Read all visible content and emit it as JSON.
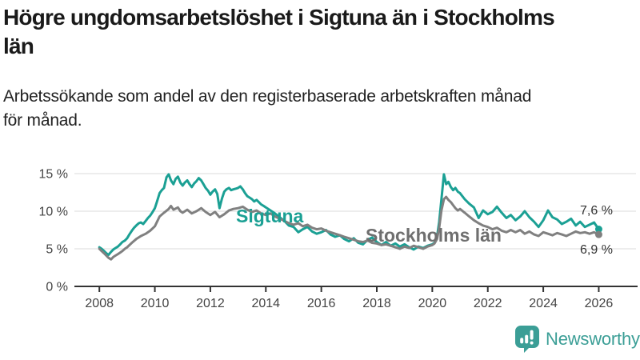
{
  "title": {
    "lines": [
      "Högre ungdomsarbetslöshet i Sigtuna än i Stockholms",
      "län"
    ]
  },
  "subtitle": {
    "lines": [
      "Arbetssökande som andel av den registerbaserade arbetskraften månad",
      "för månad."
    ]
  },
  "colors": {
    "accent_teal": "#1ba094",
    "line_gray": "#808080",
    "gray_label": "#6f6f6f",
    "axis": "#333333",
    "gridline": "#dbdbdb",
    "tick_text": "#444444",
    "end_label_text": "#333333",
    "logo_teal": "#3b9e96",
    "title_text": "#1a1a1a"
  },
  "chart_data": {
    "type": "line",
    "title": "Högre ungdomsarbetslöshet i Sigtuna än i Stockholms län",
    "subtitle": "Arbetssökande som andel av den registerbaserade arbetskraften månad för månad.",
    "xlabel": "",
    "ylabel": "",
    "grid": "horizontal-only",
    "legend_position": "inline-labels",
    "xlim": [
      2007.1,
      2027.4
    ],
    "ylim": [
      0,
      15
    ],
    "x_ticks": [
      2008,
      2010,
      2012,
      2014,
      2016,
      2018,
      2020,
      2022,
      2024,
      2026
    ],
    "x_tick_labels": [
      "2008",
      "2010",
      "2012",
      "2014",
      "2016",
      "2018",
      "2020",
      "2022",
      "2024",
      "2026"
    ],
    "y_ticks": [
      0,
      5,
      10,
      15
    ],
    "y_tick_labels": [
      "0 %",
      "5 %",
      "10 %",
      "15 %"
    ],
    "series": [
      {
        "name": "Sigtuna",
        "color": "#1ba094",
        "label_color": "#1ba094",
        "end_label": "7,6 %",
        "end_value": 7.6,
        "points": [
          [
            2008.0,
            5.2
          ],
          [
            2008.08,
            5.0
          ],
          [
            2008.17,
            4.7
          ],
          [
            2008.25,
            4.4
          ],
          [
            2008.33,
            4.2
          ],
          [
            2008.42,
            4.6
          ],
          [
            2008.5,
            4.9
          ],
          [
            2008.58,
            5.1
          ],
          [
            2008.67,
            5.3
          ],
          [
            2008.75,
            5.6
          ],
          [
            2008.83,
            5.9
          ],
          [
            2008.92,
            6.1
          ],
          [
            2009.0,
            6.4
          ],
          [
            2009.08,
            6.9
          ],
          [
            2009.17,
            7.4
          ],
          [
            2009.25,
            7.8
          ],
          [
            2009.33,
            8.1
          ],
          [
            2009.42,
            8.4
          ],
          [
            2009.5,
            8.5
          ],
          [
            2009.58,
            8.3
          ],
          [
            2009.67,
            8.7
          ],
          [
            2009.75,
            9.1
          ],
          [
            2009.83,
            9.4
          ],
          [
            2009.92,
            9.9
          ],
          [
            2010.0,
            10.4
          ],
          [
            2010.08,
            11.3
          ],
          [
            2010.17,
            12.4
          ],
          [
            2010.25,
            12.8
          ],
          [
            2010.33,
            13.1
          ],
          [
            2010.42,
            14.5
          ],
          [
            2010.5,
            14.9
          ],
          [
            2010.58,
            14.1
          ],
          [
            2010.67,
            13.6
          ],
          [
            2010.75,
            14.3
          ],
          [
            2010.83,
            14.6
          ],
          [
            2010.92,
            13.8
          ],
          [
            2011.0,
            13.4
          ],
          [
            2011.08,
            13.8
          ],
          [
            2011.17,
            14.1
          ],
          [
            2011.25,
            13.6
          ],
          [
            2011.33,
            13.2
          ],
          [
            2011.42,
            13.7
          ],
          [
            2011.5,
            14.0
          ],
          [
            2011.58,
            14.4
          ],
          [
            2011.67,
            14.1
          ],
          [
            2011.75,
            13.6
          ],
          [
            2011.83,
            13.1
          ],
          [
            2011.92,
            12.7
          ],
          [
            2012.0,
            12.2
          ],
          [
            2012.08,
            12.6
          ],
          [
            2012.17,
            12.9
          ],
          [
            2012.25,
            12.3
          ],
          [
            2012.33,
            10.4
          ],
          [
            2012.42,
            11.7
          ],
          [
            2012.5,
            12.6
          ],
          [
            2012.58,
            12.9
          ],
          [
            2012.67,
            13.1
          ],
          [
            2012.75,
            12.8
          ],
          [
            2012.83,
            12.9
          ],
          [
            2012.92,
            13.0
          ],
          [
            2013.0,
            13.1
          ],
          [
            2013.08,
            13.3
          ],
          [
            2013.17,
            12.9
          ],
          [
            2013.25,
            12.4
          ],
          [
            2013.33,
            12.0
          ],
          [
            2013.42,
            11.8
          ],
          [
            2013.5,
            11.6
          ],
          [
            2013.58,
            11.3
          ],
          [
            2013.67,
            11.5
          ],
          [
            2013.75,
            11.2
          ],
          [
            2013.83,
            10.9
          ],
          [
            2013.92,
            10.7
          ],
          [
            2014.0,
            10.5
          ],
          [
            2014.17,
            10.1
          ],
          [
            2014.33,
            9.7
          ],
          [
            2014.5,
            9.2
          ],
          [
            2014.67,
            8.7
          ],
          [
            2014.83,
            8.1
          ],
          [
            2015.0,
            7.9
          ],
          [
            2015.17,
            7.2
          ],
          [
            2015.33,
            7.6
          ],
          [
            2015.5,
            7.9
          ],
          [
            2015.67,
            7.3
          ],
          [
            2015.83,
            7.0
          ],
          [
            2016.0,
            7.2
          ],
          [
            2016.17,
            7.5
          ],
          [
            2016.33,
            6.9
          ],
          [
            2016.5,
            6.6
          ],
          [
            2016.67,
            6.8
          ],
          [
            2016.83,
            6.3
          ],
          [
            2017.0,
            6.0
          ],
          [
            2017.17,
            6.4
          ],
          [
            2017.33,
            5.8
          ],
          [
            2017.5,
            5.6
          ],
          [
            2017.67,
            6.2
          ],
          [
            2017.83,
            6.5
          ],
          [
            2018.0,
            5.9
          ],
          [
            2018.17,
            5.5
          ],
          [
            2018.33,
            5.9
          ],
          [
            2018.5,
            5.4
          ],
          [
            2018.67,
            5.7
          ],
          [
            2018.83,
            5.3
          ],
          [
            2019.0,
            5.6
          ],
          [
            2019.17,
            5.2
          ],
          [
            2019.33,
            4.9
          ],
          [
            2019.5,
            5.3
          ],
          [
            2019.67,
            5.1
          ],
          [
            2019.83,
            5.4
          ],
          [
            2020.0,
            5.6
          ],
          [
            2020.08,
            5.8
          ],
          [
            2020.17,
            6.6
          ],
          [
            2020.25,
            8.6
          ],
          [
            2020.33,
            11.6
          ],
          [
            2020.42,
            14.9
          ],
          [
            2020.5,
            13.6
          ],
          [
            2020.58,
            13.9
          ],
          [
            2020.67,
            13.2
          ],
          [
            2020.75,
            12.8
          ],
          [
            2020.83,
            13.1
          ],
          [
            2020.92,
            12.6
          ],
          [
            2021.0,
            12.4
          ],
          [
            2021.17,
            11.6
          ],
          [
            2021.33,
            11.0
          ],
          [
            2021.5,
            10.5
          ],
          [
            2021.67,
            9.1
          ],
          [
            2021.83,
            10.1
          ],
          [
            2022.0,
            9.6
          ],
          [
            2022.17,
            9.9
          ],
          [
            2022.33,
            10.6
          ],
          [
            2022.5,
            9.8
          ],
          [
            2022.67,
            9.1
          ],
          [
            2022.83,
            9.5
          ],
          [
            2023.0,
            8.8
          ],
          [
            2023.17,
            9.3
          ],
          [
            2023.33,
            10.0
          ],
          [
            2023.5,
            9.2
          ],
          [
            2023.67,
            8.6
          ],
          [
            2023.83,
            7.9
          ],
          [
            2024.0,
            8.8
          ],
          [
            2024.17,
            10.1
          ],
          [
            2024.33,
            9.2
          ],
          [
            2024.5,
            8.9
          ],
          [
            2024.67,
            8.3
          ],
          [
            2024.83,
            8.6
          ],
          [
            2025.0,
            9.0
          ],
          [
            2025.17,
            8.1
          ],
          [
            2025.33,
            8.6
          ],
          [
            2025.5,
            7.9
          ],
          [
            2025.67,
            8.2
          ],
          [
            2025.83,
            8.5
          ],
          [
            2026.0,
            7.6
          ]
        ]
      },
      {
        "name": "Stockholms län",
        "color": "#808080",
        "label_color": "#6f6f6f",
        "end_label": "6,9 %",
        "end_value": 6.9,
        "points": [
          [
            2008.0,
            5.0
          ],
          [
            2008.08,
            4.7
          ],
          [
            2008.17,
            4.4
          ],
          [
            2008.25,
            4.1
          ],
          [
            2008.33,
            3.8
          ],
          [
            2008.42,
            3.6
          ],
          [
            2008.5,
            3.9
          ],
          [
            2008.58,
            4.1
          ],
          [
            2008.67,
            4.3
          ],
          [
            2008.75,
            4.5
          ],
          [
            2008.83,
            4.7
          ],
          [
            2008.92,
            5.0
          ],
          [
            2009.0,
            5.2
          ],
          [
            2009.17,
            5.8
          ],
          [
            2009.33,
            6.3
          ],
          [
            2009.5,
            6.7
          ],
          [
            2009.67,
            7.0
          ],
          [
            2009.83,
            7.4
          ],
          [
            2010.0,
            8.0
          ],
          [
            2010.17,
            9.3
          ],
          [
            2010.33,
            9.8
          ],
          [
            2010.5,
            10.3
          ],
          [
            2010.58,
            10.7
          ],
          [
            2010.67,
            10.2
          ],
          [
            2010.83,
            10.5
          ],
          [
            2010.92,
            10.0
          ],
          [
            2011.0,
            9.8
          ],
          [
            2011.17,
            10.2
          ],
          [
            2011.33,
            9.7
          ],
          [
            2011.5,
            10.0
          ],
          [
            2011.67,
            10.4
          ],
          [
            2011.83,
            9.9
          ],
          [
            2012.0,
            9.5
          ],
          [
            2012.17,
            9.9
          ],
          [
            2012.33,
            9.2
          ],
          [
            2012.5,
            9.6
          ],
          [
            2012.67,
            10.1
          ],
          [
            2012.83,
            10.3
          ],
          [
            2013.0,
            10.4
          ],
          [
            2013.17,
            10.6
          ],
          [
            2013.33,
            10.2
          ],
          [
            2013.5,
            9.9
          ],
          [
            2013.67,
            10.1
          ],
          [
            2013.83,
            9.7
          ],
          [
            2014.0,
            9.5
          ],
          [
            2014.17,
            9.7
          ],
          [
            2014.33,
            9.3
          ],
          [
            2014.5,
            9.0
          ],
          [
            2014.67,
            8.7
          ],
          [
            2014.83,
            8.4
          ],
          [
            2015.0,
            8.2
          ],
          [
            2015.17,
            8.4
          ],
          [
            2015.33,
            8.0
          ],
          [
            2015.5,
            8.2
          ],
          [
            2015.67,
            7.8
          ],
          [
            2015.83,
            7.6
          ],
          [
            2016.0,
            7.7
          ],
          [
            2016.17,
            7.4
          ],
          [
            2016.33,
            7.2
          ],
          [
            2016.5,
            7.0
          ],
          [
            2016.67,
            6.8
          ],
          [
            2016.83,
            6.6
          ],
          [
            2017.0,
            6.4
          ],
          [
            2017.17,
            6.2
          ],
          [
            2017.33,
            6.0
          ],
          [
            2017.5,
            5.9
          ],
          [
            2017.67,
            6.1
          ],
          [
            2017.83,
            5.8
          ],
          [
            2018.0,
            5.7
          ],
          [
            2018.17,
            5.5
          ],
          [
            2018.33,
            5.6
          ],
          [
            2018.5,
            5.4
          ],
          [
            2018.67,
            5.2
          ],
          [
            2018.83,
            5.0
          ],
          [
            2019.0,
            5.3
          ],
          [
            2019.17,
            5.1
          ],
          [
            2019.33,
            5.4
          ],
          [
            2019.5,
            5.2
          ],
          [
            2019.67,
            5.0
          ],
          [
            2019.83,
            5.3
          ],
          [
            2020.0,
            5.5
          ],
          [
            2020.08,
            5.7
          ],
          [
            2020.17,
            6.3
          ],
          [
            2020.25,
            7.8
          ],
          [
            2020.33,
            10.1
          ],
          [
            2020.42,
            11.6
          ],
          [
            2020.5,
            11.9
          ],
          [
            2020.58,
            11.5
          ],
          [
            2020.67,
            11.2
          ],
          [
            2020.75,
            10.8
          ],
          [
            2020.83,
            10.4
          ],
          [
            2020.92,
            10.1
          ],
          [
            2021.0,
            10.3
          ],
          [
            2021.17,
            9.8
          ],
          [
            2021.33,
            9.3
          ],
          [
            2021.5,
            8.8
          ],
          [
            2021.67,
            8.4
          ],
          [
            2021.83,
            8.1
          ],
          [
            2022.0,
            7.9
          ],
          [
            2022.17,
            7.6
          ],
          [
            2022.33,
            7.8
          ],
          [
            2022.5,
            7.4
          ],
          [
            2022.67,
            7.2
          ],
          [
            2022.83,
            7.5
          ],
          [
            2023.0,
            7.2
          ],
          [
            2023.17,
            7.5
          ],
          [
            2023.33,
            7.0
          ],
          [
            2023.5,
            7.3
          ],
          [
            2023.67,
            6.9
          ],
          [
            2023.83,
            6.7
          ],
          [
            2024.0,
            7.2
          ],
          [
            2024.17,
            7.0
          ],
          [
            2024.33,
            6.8
          ],
          [
            2024.5,
            7.1
          ],
          [
            2024.67,
            6.9
          ],
          [
            2024.83,
            6.7
          ],
          [
            2025.0,
            7.0
          ],
          [
            2025.17,
            7.3
          ],
          [
            2025.33,
            7.1
          ],
          [
            2025.5,
            7.2
          ],
          [
            2025.67,
            7.0
          ],
          [
            2025.83,
            7.2
          ],
          [
            2026.0,
            6.9
          ]
        ]
      }
    ]
  },
  "footer": {
    "brand": "Newsworthy"
  }
}
